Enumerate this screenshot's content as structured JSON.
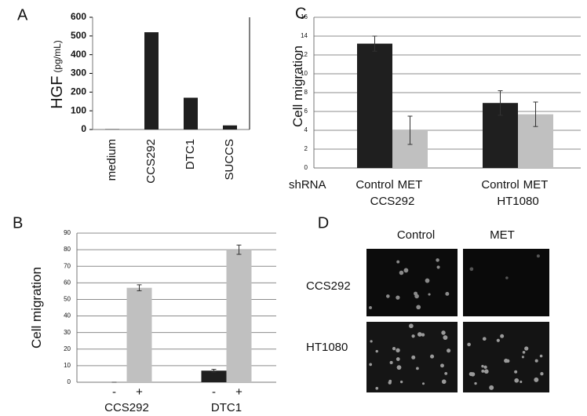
{
  "chart_data": [
    {
      "type": "bar",
      "panel": "A",
      "ylabel": "HGF",
      "ylabel_unit": "(pg/mL)",
      "categories": [
        "medium",
        "CCS292",
        "DTC1",
        "SUCCS"
      ],
      "values": [
        2,
        520,
        170,
        22
      ],
      "color": "#1f1f1f",
      "ylim": [
        0,
        600
      ],
      "yticks": [
        0,
        100,
        200,
        300,
        400,
        500,
        600
      ],
      "grid": false
    },
    {
      "type": "bar",
      "panel": "B",
      "ylabel": "Cell migration",
      "categories": [
        "CCS292",
        "DTC1"
      ],
      "series": [
        {
          "name": "-",
          "color": "#1f1f1f",
          "values": [
            0,
            7
          ],
          "errors": [
            0,
            0.8
          ]
        },
        {
          "name": "+",
          "color": "#c0c0c0",
          "values": [
            57,
            80
          ],
          "errors": [
            1.8,
            2.8
          ]
        }
      ],
      "ylim": [
        0,
        90
      ],
      "yticks": [
        0,
        10,
        20,
        30,
        40,
        50,
        60,
        70,
        80,
        90
      ],
      "grid": true
    },
    {
      "type": "bar",
      "panel": "C",
      "ylabel": "Cell migration",
      "row_label": "shRNA",
      "categories": [
        "CCS292",
        "HT1080"
      ],
      "series": [
        {
          "name": "Control",
          "color": "#1f1f1f",
          "values": [
            13.2,
            6.9
          ],
          "errors": [
            0.8,
            1.3
          ]
        },
        {
          "name": "MET",
          "color": "#c0c0c0",
          "values": [
            4.0,
            5.7
          ],
          "errors": [
            1.5,
            1.3
          ]
        }
      ],
      "ylim": [
        0,
        16
      ],
      "yticks": [
        0,
        2,
        4,
        6,
        8,
        10,
        12,
        14,
        16
      ],
      "grid": true
    }
  ],
  "image_panel": {
    "panel": "D",
    "columns": [
      "Control",
      "MET"
    ],
    "rows": [
      "CCS292",
      "HT1080"
    ]
  }
}
